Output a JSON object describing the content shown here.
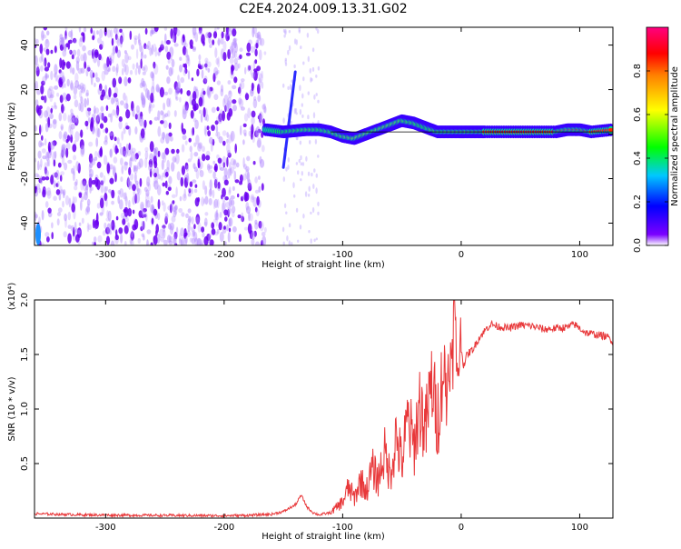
{
  "title": "C2E4.2024.009.13.31.G02",
  "chart_data": [
    {
      "type": "heatmap",
      "xlabel": "Height of straight line (km)",
      "ylabel": "Frequency (Hz)",
      "xlim": [
        -360,
        128
      ],
      "ylim": [
        -50,
        48
      ],
      "x_ticks": [
        -300,
        -200,
        -100,
        0,
        100
      ],
      "x_tick_labels": [
        "-300",
        "-200",
        "-100",
        "0",
        "100"
      ],
      "y_ticks": [
        -40,
        -20,
        0,
        20,
        40
      ],
      "y_tick_labels": [
        "-40",
        "-20",
        "0",
        "20",
        "40"
      ],
      "colorbar": {
        "label": "Normalized spectral amplitude",
        "range": [
          0,
          1
        ],
        "ticks": [
          0.0,
          0.2,
          0.4,
          0.6,
          0.8
        ],
        "tick_labels": [
          "0.0",
          "0.2",
          "0.4",
          "0.6",
          "0.8"
        ],
        "colormap": "rainbow",
        "colors": [
          "#ffffff",
          "#6a00ff",
          "#0000ff",
          "#00c8ff",
          "#00ff00",
          "#ffff00",
          "#ff8000",
          "#ff0000",
          "#ff0080"
        ]
      },
      "noise_region_x": [
        -360,
        -165
      ],
      "signal_trace": {
        "x": [
          -165,
          -150,
          -140,
          -130,
          -120,
          -110,
          -100,
          -90,
          -80,
          -70,
          -60,
          -50,
          -40,
          -30,
          -20,
          -10,
          0,
          10,
          20,
          40,
          60,
          80,
          90,
          100,
          110,
          128
        ],
        "frequency_hz": [
          2,
          1,
          1.5,
          2,
          2,
          1,
          -1,
          -2,
          0,
          2,
          4,
          6,
          5,
          3,
          1,
          1,
          1,
          1,
          1,
          1,
          1,
          1,
          2,
          2,
          1,
          2
        ],
        "amplitude": [
          0.35,
          0.45,
          0.5,
          0.55,
          0.5,
          0.5,
          0.55,
          0.6,
          0.6,
          0.55,
          0.6,
          0.55,
          0.5,
          0.45,
          0.55,
          0.6,
          0.7,
          0.75,
          0.85,
          0.9,
          0.9,
          0.85,
          0.8,
          0.85,
          0.85,
          0.85
        ]
      },
      "streak": {
        "x": [
          -150,
          -140
        ],
        "frequency_hz": [
          -15,
          28
        ]
      }
    },
    {
      "type": "line",
      "xlabel": "Height of straight line (km)",
      "ylabel": "SNR (10 * v/v)",
      "y_multiplier_label": "(x10⁴)",
      "xlim": [
        -360,
        128
      ],
      "ylim": [
        0,
        20000
      ],
      "x_ticks": [
        -300,
        -200,
        -100,
        0,
        100
      ],
      "x_tick_labels": [
        "-300",
        "-200",
        "-100",
        "0",
        "100"
      ],
      "y_ticks": [
        5000,
        10000,
        15000,
        20000
      ],
      "y_tick_labels": [
        "0.5",
        "1.0",
        "1.5",
        "2.0"
      ],
      "color": "#e8383a",
      "series": [
        {
          "x": [
            -360,
            -340,
            -320,
            -300,
            -280,
            -260,
            -240,
            -220,
            -200,
            -180,
            -160,
            -150,
            -140,
            -135,
            -130,
            -125,
            -120,
            -110,
            -100,
            -95,
            -90,
            -85,
            -80,
            -75,
            -70,
            -65,
            -60,
            -55,
            -50,
            -45,
            -40,
            -35,
            -30,
            -25,
            -20,
            -15,
            -12,
            -10,
            -8,
            -6,
            -4,
            -2,
            0,
            2,
            5,
            10,
            15,
            20,
            25,
            30,
            40,
            50,
            60,
            70,
            80,
            90,
            95,
            100,
            105,
            110,
            115,
            120,
            125,
            128
          ],
          "values": [
            400,
            350,
            300,
            280,
            260,
            250,
            240,
            230,
            220,
            250,
            350,
            600,
            1200,
            2100,
            1000,
            500,
            300,
            500,
            1500,
            2800,
            1800,
            3500,
            2500,
            4500,
            3500,
            6000,
            4000,
            7500,
            5000,
            9000,
            6500,
            10500,
            8000,
            12500,
            9000,
            14000,
            11000,
            16500,
            12000,
            19500,
            14000,
            15000,
            15500,
            14000,
            15000,
            15500,
            16500,
            17200,
            17800,
            17600,
            17400,
            17700,
            17600,
            17300,
            17400,
            17500,
            17800,
            17400,
            17000,
            16900,
            16800,
            16700,
            16500,
            16200
          ]
        }
      ]
    }
  ]
}
